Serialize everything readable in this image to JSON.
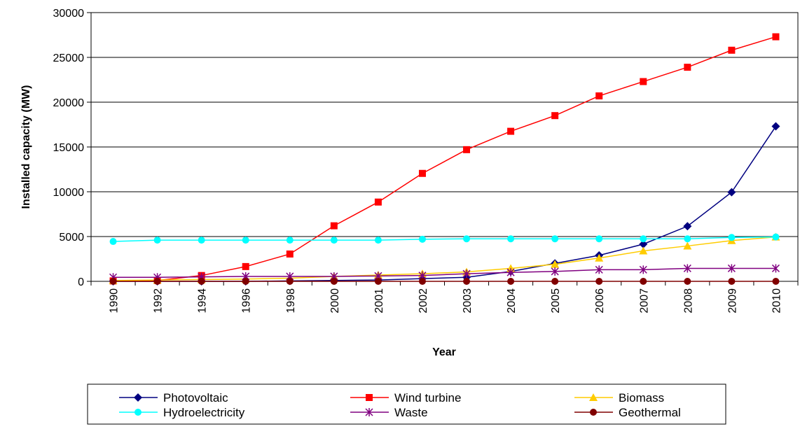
{
  "chart_data": {
    "type": "line",
    "title": "",
    "xlabel": "Year",
    "ylabel": "Installed capacity (MW)",
    "ylim": [
      0,
      30000
    ],
    "yticks": [
      0,
      5000,
      10000,
      15000,
      20000,
      25000,
      30000
    ],
    "grid": "horizontal",
    "legend": "bottom",
    "categories": [
      "1990",
      "1992",
      "1994",
      "1996",
      "1998",
      "2000",
      "2001",
      "2002",
      "2003",
      "2004",
      "2005",
      "2006",
      "2007",
      "2008",
      "2009",
      "2010"
    ],
    "series": [
      {
        "name": "Photovoltaic",
        "color": "#000080",
        "marker": "diamond",
        "values": [
          0,
          0,
          0,
          0,
          50,
          100,
          150,
          300,
          450,
          1100,
          2000,
          2900,
          4150,
          6150,
          9950,
          17300
        ]
      },
      {
        "name": "Wind turbine",
        "color": "#ff0000",
        "marker": "square",
        "values": [
          50,
          100,
          650,
          1650,
          3050,
          6200,
          8850,
          12050,
          14700,
          16750,
          18500,
          20700,
          22300,
          23900,
          25800,
          27300
        ]
      },
      {
        "name": "Biomass",
        "color": "#ffcc00",
        "marker": "triangle",
        "values": [
          100,
          150,
          200,
          250,
          350,
          550,
          700,
          850,
          1050,
          1450,
          1900,
          2600,
          3400,
          3950,
          4550,
          4950
        ]
      },
      {
        "name": "Hydroelectricity",
        "color": "#00ffff",
        "marker": "circle",
        "values": [
          4450,
          4600,
          4600,
          4600,
          4600,
          4600,
          4600,
          4700,
          4750,
          4750,
          4750,
          4750,
          4750,
          4750,
          4900,
          4950
        ]
      },
      {
        "name": "Waste",
        "color": "#800080",
        "marker": "star",
        "values": [
          450,
          450,
          500,
          550,
          550,
          550,
          600,
          650,
          850,
          1000,
          1100,
          1300,
          1300,
          1450,
          1450,
          1450
        ]
      },
      {
        "name": "Geothermal",
        "color": "#800000",
        "marker": "circle",
        "values": [
          0,
          0,
          0,
          0,
          0,
          0,
          0,
          0,
          0,
          0,
          0,
          0,
          0,
          0,
          0,
          0
        ]
      }
    ]
  }
}
